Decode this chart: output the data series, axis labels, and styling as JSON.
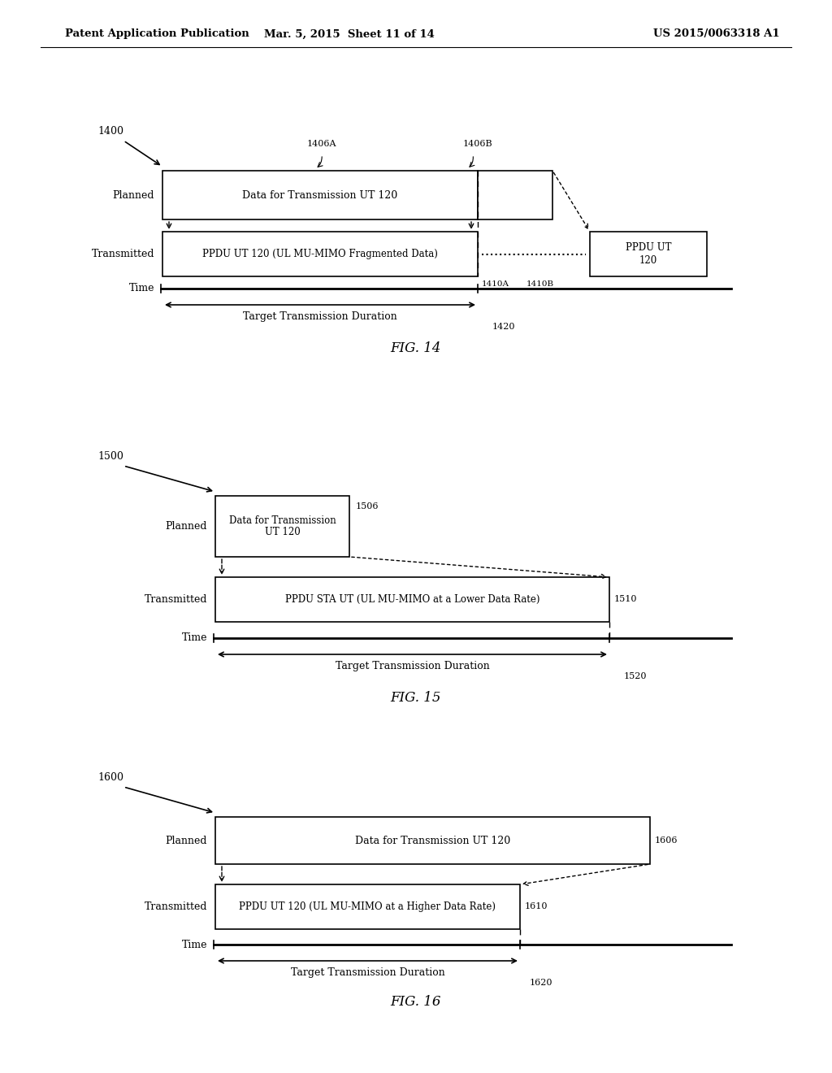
{
  "bg_color": "#ffffff",
  "header_left": "Patent Application Publication",
  "header_mid": "Mar. 5, 2015  Sheet 11 of 14",
  "header_right": "US 2015/0063318 A1",
  "fig14": {
    "label": "1400",
    "fig_label": "FIG. 14",
    "label_1406A": "1406A",
    "label_1406B": "1406B",
    "label_1410A": "1410A",
    "label_1410B": "1410B",
    "label_1420": "1420",
    "planned_text": "Data for Transmission UT 120",
    "transmitted_text": "PPDU UT 120 (UL MU-MIMO Fragmented Data)",
    "ppdu_box_text": "PPDU UT\n120",
    "time_text": "Time",
    "planned_label": "Planned",
    "transmitted_label": "Transmitted",
    "duration_text": "Target Transmission Duration"
  },
  "fig15": {
    "label": "1500",
    "fig_label": "FIG. 15",
    "label_1506": "1506",
    "label_1510": "1510",
    "label_1520": "1520",
    "planned_text": "Data for Transmission\nUT 120",
    "transmitted_text": "PPDU STA UT (UL MU-MIMO at a Lower Data Rate)",
    "time_text": "Time",
    "planned_label": "Planned",
    "transmitted_label": "Transmitted",
    "duration_text": "Target Transmission Duration"
  },
  "fig16": {
    "label": "1600",
    "fig_label": "FIG. 16",
    "label_1606": "1606",
    "label_1610": "1610",
    "label_1620": "1620",
    "planned_text": "Data for Transmission UT 120",
    "transmitted_text": "PPDU UT 120 (UL MU-MIMO at a Higher Data Rate)",
    "time_text": "Time",
    "planned_label": "Planned",
    "transmitted_label": "Transmitted",
    "duration_text": "Target Transmission Duration"
  }
}
